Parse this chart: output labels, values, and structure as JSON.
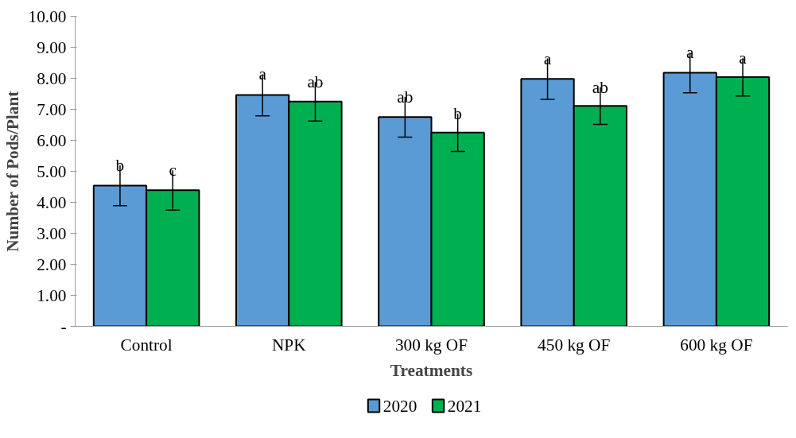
{
  "chart_data": {
    "type": "bar",
    "xlabel": "Treatments",
    "ylabel": "Number of Pods/Plant",
    "categories": [
      "Control",
      "NPK",
      "300 kg OF",
      "450 kg OF",
      "600 kg OF"
    ],
    "series": [
      {
        "name": "2020",
        "color": "#5b9bd5",
        "values": [
          4.54,
          7.46,
          6.75,
          7.98,
          8.18
        ],
        "errors": [
          0.65,
          0.67,
          0.65,
          0.66,
          0.65
        ],
        "value_labels": [
          "b",
          "a",
          "ab",
          "a",
          "a"
        ]
      },
      {
        "name": "2021",
        "color": "#00b050",
        "values": [
          4.39,
          7.25,
          6.25,
          7.11,
          8.04
        ],
        "errors": [
          0.64,
          0.63,
          0.61,
          0.6,
          0.61
        ],
        "value_labels": [
          "c",
          "ab",
          "b",
          "ab",
          "a"
        ]
      }
    ],
    "ylim": [
      0,
      10
    ],
    "yticks": [
      {
        "value": 0,
        "label": "-"
      },
      {
        "value": 1,
        "label": "1.00"
      },
      {
        "value": 2,
        "label": "2.00"
      },
      {
        "value": 3,
        "label": "3.00"
      },
      {
        "value": 4,
        "label": "4.00"
      },
      {
        "value": 5,
        "label": "5.00"
      },
      {
        "value": 6,
        "label": "6.00"
      },
      {
        "value": 7,
        "label": "7.00"
      },
      {
        "value": 8,
        "label": "8.00"
      },
      {
        "value": 9,
        "label": "9.00"
      },
      {
        "value": 10,
        "label": "10.00"
      }
    ],
    "grid": false,
    "legend": "bottom"
  }
}
